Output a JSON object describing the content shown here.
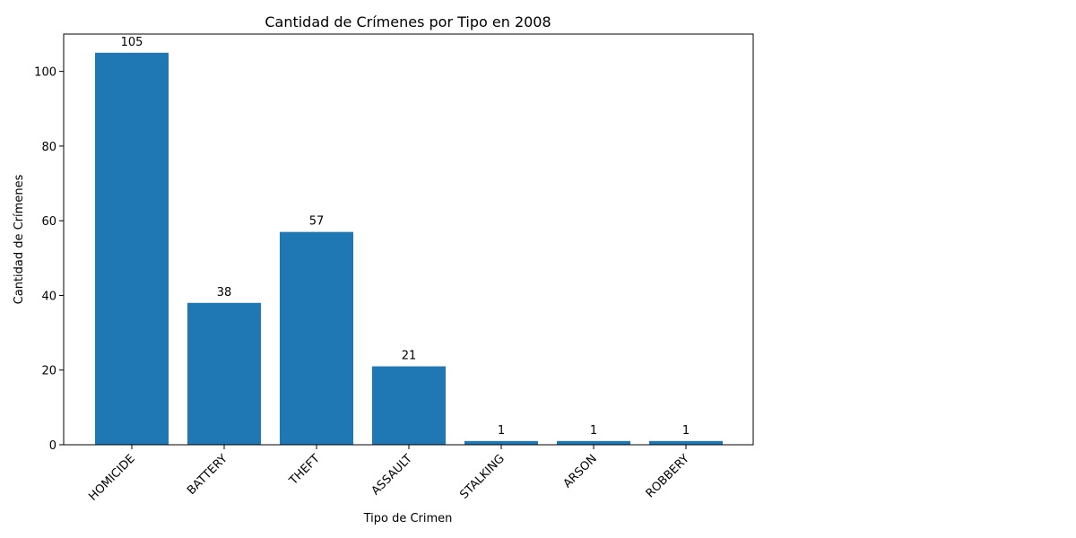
{
  "chart_data": {
    "type": "bar",
    "title": "Cantidad de Crímenes por Tipo en 2008",
    "xlabel": "Tipo de Crimen",
    "ylabel": "Cantidad de Crímenes",
    "categories": [
      "HOMICIDE",
      "BATTERY",
      "THEFT",
      "ASSAULT",
      "STALKING",
      "ARSON",
      "ROBBERY"
    ],
    "values": [
      105,
      38,
      57,
      21,
      1,
      1,
      1
    ],
    "data_labels": [
      "105",
      "38",
      "57",
      "21",
      "1",
      "1",
      "1"
    ],
    "yticks": [
      0,
      20,
      40,
      60,
      80,
      100
    ],
    "ylim": [
      0,
      110
    ],
    "grid": false,
    "legend": "none",
    "bar_color": "#1f77b4"
  }
}
